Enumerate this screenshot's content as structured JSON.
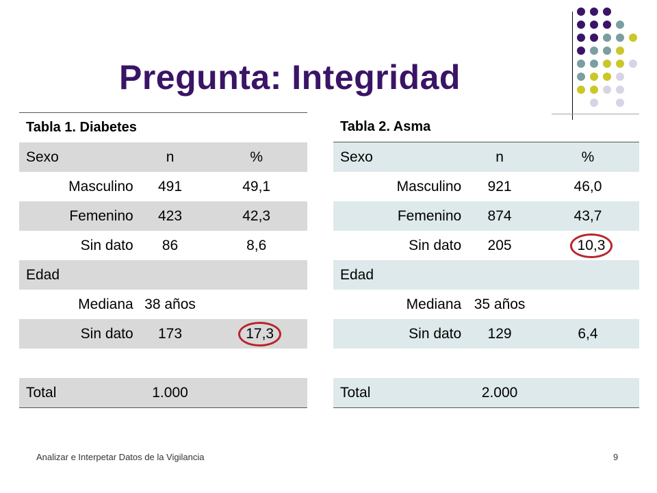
{
  "slide": {
    "title": "Pregunta: Integridad",
    "footer": "Analizar e Interpetar Datos de la Vigilancia",
    "page_number": "9"
  },
  "colors": {
    "title": "#3a1466",
    "purple_dot": "#3a1466",
    "teal_dot": "#7b9ea0",
    "yellow_dot": "#c9c72a",
    "lavender_dot": "#d6d4e6",
    "table1_shade": "#d9d9d9",
    "table2_shade": "#dde9ea",
    "circle": "#b8242a"
  },
  "table1": {
    "caption": "Tabla 1. Diabetes",
    "header": [
      "Sexo",
      "n",
      "%"
    ],
    "rows": [
      [
        "Masculino",
        "491",
        "49,1"
      ],
      [
        "Femenino",
        "423",
        "42,3"
      ],
      [
        "Sin dato",
        "86",
        "8,6"
      ]
    ],
    "section": "Edad",
    "age_rows": [
      [
        "Mediana",
        "38 años",
        ""
      ],
      [
        "Sin dato",
        "173",
        "17,3"
      ]
    ],
    "total": [
      "Total",
      "1.000",
      ""
    ]
  },
  "table2": {
    "caption": "Tabla 2. Asma",
    "header": [
      "Sexo",
      "n",
      "%"
    ],
    "rows": [
      [
        "Masculino",
        "921",
        "46,0"
      ],
      [
        "Femenino",
        "874",
        "43,7"
      ],
      [
        "Sin dato",
        "205",
        "10,3"
      ]
    ],
    "section": "Edad",
    "age_rows": [
      [
        "Mediana",
        "35 años",
        ""
      ],
      [
        "Sin dato",
        "129",
        "6,4"
      ]
    ],
    "total": [
      "Total",
      "2.000",
      ""
    ]
  }
}
